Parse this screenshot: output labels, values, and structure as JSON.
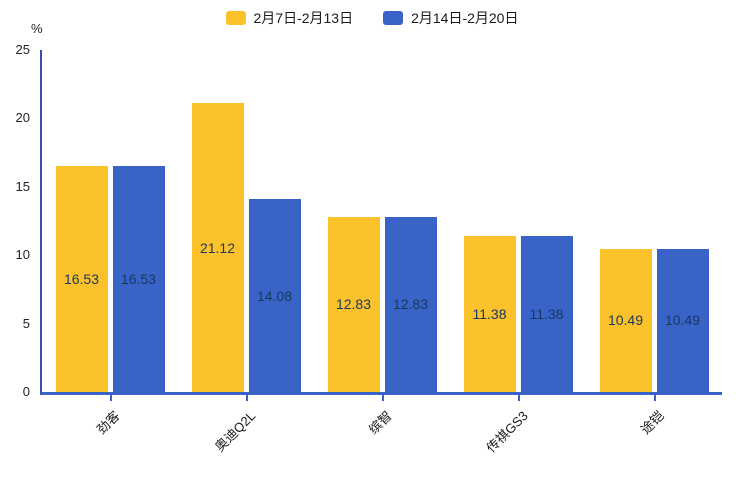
{
  "chart_data": {
    "type": "bar",
    "title": "",
    "categories": [
      "劲客",
      "奥迪Q2L",
      "缤智",
      "传祺GS3",
      "途铠"
    ],
    "series": [
      {
        "name": "2月7日-2月13日",
        "color": "#fcc22b",
        "values": [
          16.53,
          21.12,
          12.83,
          11.38,
          10.49
        ]
      },
      {
        "name": "2月14日-2月20日",
        "color": "#3a63c8",
        "values": [
          16.53,
          14.08,
          12.83,
          11.38,
          10.49
        ]
      }
    ],
    "xlabel": "",
    "ylabel": "%",
    "ylim": [
      0,
      25
    ],
    "yticks": [
      0,
      5,
      10,
      15,
      20,
      25
    ],
    "grid": false,
    "legend_position": "top",
    "value_label_decimals": 2,
    "bar_label_color": "#17375e",
    "axis_color": "#3a63c8"
  }
}
